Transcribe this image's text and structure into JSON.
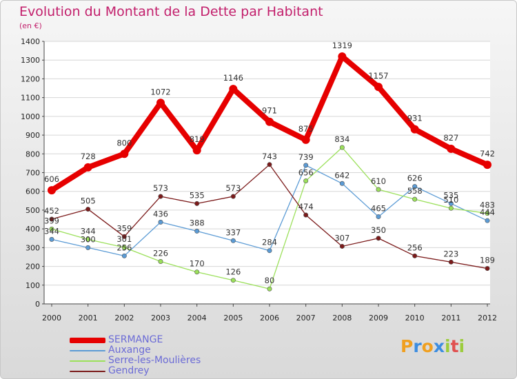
{
  "header": {
    "title": "Evolution du Montant de la Dette par Habitant",
    "unit": "(en €)"
  },
  "brand": {
    "letters": [
      "P",
      "r",
      "o",
      "x",
      "i",
      "t",
      "i"
    ],
    "colors": [
      "#f0a020",
      "#3c8de0",
      "#f0a020",
      "#3c8de0",
      "#9ccc3c",
      "#e05050",
      "#9ccc3c"
    ]
  },
  "chart_data": {
    "type": "line",
    "title": "Evolution du Montant de la Dette par Habitant",
    "ylabel": "(en €)",
    "xlabel": "",
    "categories": [
      "2000",
      "2001",
      "2002",
      "2003",
      "2004",
      "2005",
      "2006",
      "2007",
      "2008",
      "2009",
      "2010",
      "2011",
      "2012"
    ],
    "ylim": [
      0,
      1400
    ],
    "yticks": [
      0,
      100,
      200,
      300,
      400,
      500,
      600,
      700,
      800,
      900,
      1000,
      1100,
      1200,
      1300,
      1400
    ],
    "grid": "horizontal",
    "legend_position": "bottom-left",
    "series": [
      {
        "name": "SERMANGE",
        "color": "#e60000",
        "emphasis": true,
        "values": [
          606,
          728,
          800,
          1072,
          819,
          1146,
          971,
          875,
          1319,
          1157,
          931,
          827,
          742
        ]
      },
      {
        "name": "Auxange",
        "color": "#5b9bd5",
        "values": [
          344,
          300,
          256,
          436,
          388,
          337,
          284,
          739,
          642,
          465,
          626,
          535,
          444
        ]
      },
      {
        "name": "Serre-les-Moulières",
        "color": "#9be05a",
        "values": [
          399,
          344,
          301,
          226,
          170,
          126,
          80,
          656,
          834,
          610,
          558,
          510,
          483
        ]
      },
      {
        "name": "Gendrey",
        "color": "#7b1a1a",
        "values": [
          452,
          505,
          359,
          573,
          535,
          573,
          743,
          474,
          307,
          350,
          256,
          223,
          189
        ]
      }
    ]
  }
}
